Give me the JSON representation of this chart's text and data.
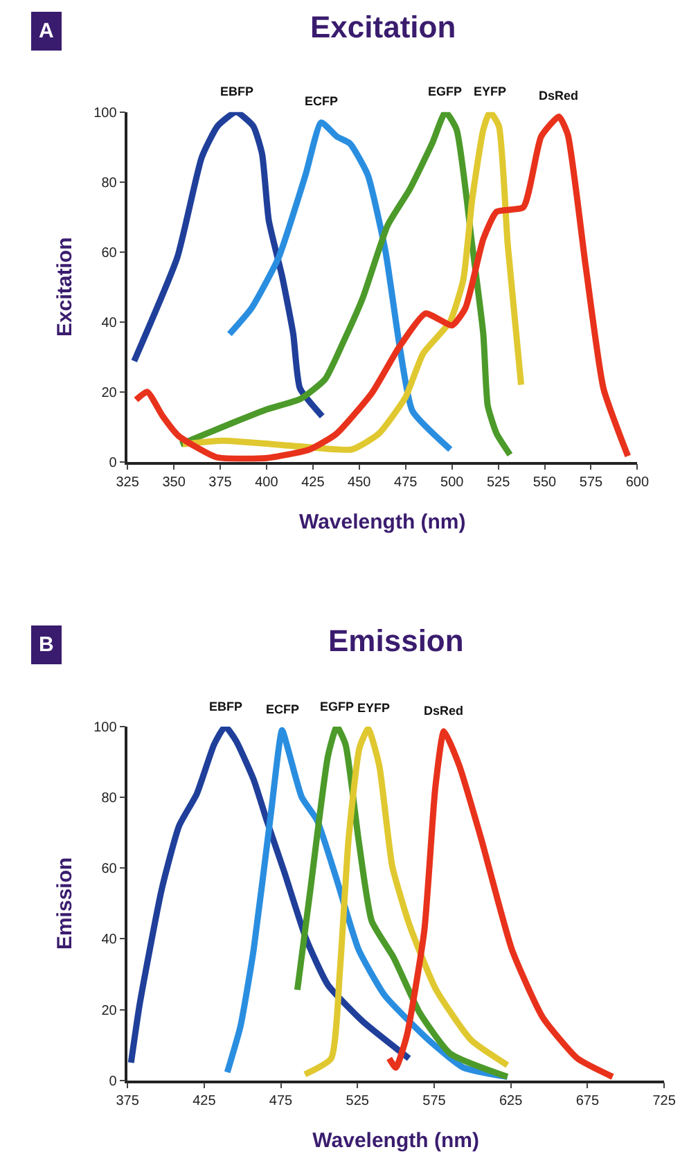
{
  "chart_data": [
    {
      "type": "line",
      "title": "Excitation",
      "xlabel": "Wavelength (nm)",
      "ylabel": "Excitation",
      "annotations": [
        "A"
      ],
      "legend": false,
      "grid": false,
      "xlim": [
        325,
        600
      ],
      "ylim": [
        0,
        100
      ],
      "xticks": [
        325,
        350,
        375,
        400,
        425,
        450,
        475,
        500,
        525,
        550,
        575,
        600
      ],
      "yticks": [
        0,
        20,
        40,
        60,
        80,
        100
      ],
      "series": [
        {
          "name": "EBFP",
          "color": "#1f3f9a",
          "x": [
            328.6,
            351.9,
            365,
            373.6,
            383.6,
            392.8,
            397.6,
            401.2,
            408.4,
            414.4,
            418,
            430
          ],
          "values": [
            28.8,
            58.5,
            87,
            96,
            100,
            96,
            88,
            69,
            53,
            36.5,
            21,
            13
          ]
        },
        {
          "name": "ECFP",
          "color": "#2a8ee0",
          "x": [
            380,
            392,
            406.6,
            421,
            429.5,
            437.9,
            445,
            454.6,
            464.2,
            471.5,
            478.7,
            499.1
          ],
          "values": [
            36.5,
            44,
            58.5,
            82,
            97,
            93,
            91,
            82,
            60,
            34,
            14.5,
            3.5
          ]
        },
        {
          "name": "EGFP",
          "color": "#4c9a2a",
          "x": [
            353.6,
            381.2,
            400.4,
            418.4,
            431.6,
            441.2,
            452,
            465.3,
            477.3,
            489.3,
            496.5,
            502.5,
            510.9,
            516.9,
            519.3,
            524.1,
            531.3
          ],
          "values": [
            5,
            11,
            15,
            18,
            23.6,
            34,
            47,
            67.6,
            78,
            91,
            100,
            95,
            62,
            36.5,
            16,
            8,
            2
          ]
        },
        {
          "name": "EYFP",
          "color": "#e0c830",
          "x": [
            354.8,
            376.4,
            417.2,
            446,
            460.5,
            474.9,
            484.5,
            498.9,
            506.1,
            510.9,
            516.9,
            520.5,
            525.3,
            530.1,
            537.3
          ],
          "values": [
            5,
            6,
            4.4,
            3.5,
            8,
            18.4,
            31,
            40,
            52,
            75,
            95,
            100,
            96,
            62,
            22
          ]
        },
        {
          "name": "DsRed",
          "color": "#e8321c",
          "x": [
            329.6,
            335.6,
            344,
            352.5,
            372.9,
            399.3,
            423.3,
            437.7,
            456.9,
            471.3,
            485.7,
            500.1,
            507.3,
            516.9,
            524.1,
            538.5,
            548.1,
            557.7,
            562.5,
            572.1,
            581.7,
            594.9
          ],
          "values": [
            17.7,
            20,
            13,
            7.4,
            1.3,
            1,
            3.5,
            8,
            19.7,
            32.6,
            42.4,
            39,
            44,
            63.7,
            71.5,
            72.8,
            93,
            98.7,
            93.5,
            56,
            21,
            1.6
          ]
        }
      ]
    },
    {
      "type": "line",
      "title": "Emission",
      "xlabel": "Wavelength (nm)",
      "ylabel": "Emission",
      "annotations": [
        "B"
      ],
      "legend": false,
      "grid": false,
      "xlim": [
        375,
        725
      ],
      "ylim": [
        0,
        100
      ],
      "xticks": [
        375,
        425,
        475,
        525,
        575,
        625,
        675,
        725
      ],
      "yticks": [
        0,
        20,
        40,
        60,
        80,
        100
      ],
      "series": [
        {
          "name": "EBFP",
          "color": "#1f3f9a",
          "x": [
            377.3,
            383,
            397.3,
            408.7,
            420.2,
            431.5,
            438.7,
            445.8,
            457.3,
            465.8,
            477.2,
            491.5,
            505.7,
            528.6,
            558.6
          ],
          "values": [
            5,
            21.7,
            54,
            72,
            81,
            95,
            100,
            96,
            85,
            73.5,
            59,
            40,
            27,
            16.6,
            6.2
          ]
        },
        {
          "name": "ECFP",
          "color": "#2a8ee0",
          "x": [
            440.1,
            448.7,
            457.3,
            468.7,
            475.8,
            480.1,
            488.7,
            498.7,
            511.5,
            525.7,
            542.8,
            571.4,
            594.2,
            622.8
          ],
          "values": [
            2.3,
            15.3,
            37,
            76,
            99,
            93,
            80,
            73.5,
            56.7,
            37,
            24,
            11.4,
            3.6,
            1
          ]
        },
        {
          "name": "EGFP",
          "color": "#4c9a2a",
          "x": [
            485.8,
            494.3,
            505.7,
            511.5,
            517.2,
            525.7,
            534.3,
            548.6,
            565.7,
            585.7,
            622.8
          ],
          "values": [
            25.6,
            54,
            91.6,
            100,
            95,
            68,
            45,
            34.7,
            19,
            7.5,
            1
          ]
        },
        {
          "name": "EYFP",
          "color": "#e0c830",
          "x": [
            490.7,
            507.8,
            513.5,
            519.2,
            526.3,
            532,
            539.2,
            547.7,
            559.1,
            576.3,
            599.1,
            622.8
          ],
          "values": [
            1.7,
            6.2,
            30.8,
            68.3,
            94,
            99.4,
            89,
            60.5,
            43.7,
            25.6,
            11.4,
            4.3
          ]
        },
        {
          "name": "DsRed",
          "color": "#e8321c",
          "x": [
            545.7,
            550,
            557.2,
            568.6,
            575.7,
            581.4,
            591.4,
            605.7,
            625.7,
            645.7,
            668.5,
            691.4
          ],
          "values": [
            6.2,
            3.6,
            12.7,
            42.4,
            82.5,
            98.7,
            89,
            68.3,
            37,
            17.9,
            6.2,
            1
          ]
        }
      ]
    }
  ]
}
